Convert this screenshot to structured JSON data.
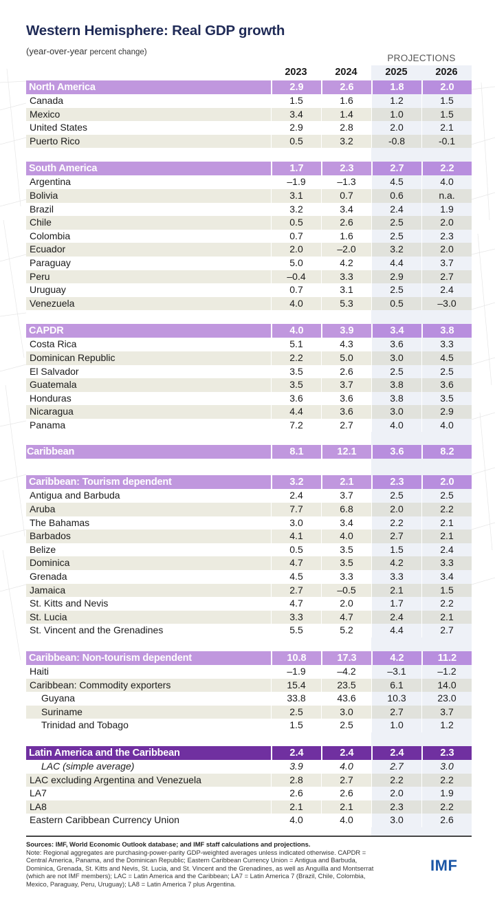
{
  "header": {
    "title": "Western Hemisphere: Real GDP growth",
    "subtitle_main": "(year-over-year",
    "subtitle_small": "percent change)",
    "projections_label": "PROJECTIONS",
    "years": [
      "2023",
      "2024",
      "2025",
      "2026"
    ]
  },
  "colors": {
    "title": "#1f2a56",
    "group_header": "#c097de",
    "lac_header": "#7030a0",
    "projection_shade": "#eef1f7",
    "alt_row": "#ecebe0",
    "logo": "#1a56a6"
  },
  "groups": [
    {
      "name": "North America",
      "values": [
        "2.9",
        "2.6",
        "1.8",
        "2.0"
      ],
      "rows": [
        {
          "label": "Canada",
          "values": [
            "1.5",
            "1.6",
            "1.2",
            "1.5"
          ]
        },
        {
          "label": "Mexico",
          "values": [
            "3.4",
            "1.4",
            "1.0",
            "1.5"
          ]
        },
        {
          "label": "United States",
          "values": [
            "2.9",
            "2.8",
            "2.0",
            "2.1"
          ]
        },
        {
          "label": "Puerto Rico",
          "values": [
            "0.5",
            "3.2",
            "-0.8",
            "-0.1"
          ]
        }
      ]
    },
    {
      "name": "South America",
      "values": [
        "1.7",
        "2.3",
        "2.7",
        "2.2"
      ],
      "rows": [
        {
          "label": "Argentina",
          "values": [
            "–1.9",
            "–1.3",
            "4.5",
            "4.0"
          ]
        },
        {
          "label": "Bolivia",
          "values": [
            "3.1",
            "0.7",
            "0.6",
            "n.a."
          ]
        },
        {
          "label": "Brazil",
          "values": [
            "3.2",
            "3.4",
            "2.4",
            "1.9"
          ]
        },
        {
          "label": "Chile",
          "values": [
            "0.5",
            "2.6",
            "2.5",
            "2.0"
          ]
        },
        {
          "label": "Colombia",
          "values": [
            "0.7",
            "1.6",
            "2.5",
            "2.3"
          ]
        },
        {
          "label": "Ecuador",
          "values": [
            "2.0",
            "–2.0",
            "3.2",
            "2.0"
          ]
        },
        {
          "label": "Paraguay",
          "values": [
            "5.0",
            "4.2",
            "4.4",
            "3.7"
          ]
        },
        {
          "label": "Peru",
          "values": [
            "–0.4",
            "3.3",
            "2.9",
            "2.7"
          ]
        },
        {
          "label": "Uruguay",
          "values": [
            "0.7",
            "3.1",
            "2.5",
            "2.4"
          ]
        },
        {
          "label": "Venezuela",
          "values": [
            "4.0",
            "5.3",
            "0.5",
            "–3.0"
          ]
        }
      ]
    },
    {
      "name": "CAPDR",
      "values": [
        "4.0",
        "3.9",
        "3.4",
        "3.8"
      ],
      "rows": [
        {
          "label": "Costa Rica",
          "values": [
            "5.1",
            "4.3",
            "3.6",
            "3.3"
          ]
        },
        {
          "label": "Dominican Republic",
          "values": [
            "2.2",
            "5.0",
            "3.0",
            "4.5"
          ]
        },
        {
          "label": "El Salvador",
          "values": [
            "3.5",
            "2.6",
            "2.5",
            "2.5"
          ]
        },
        {
          "label": "Guatemala",
          "values": [
            "3.5",
            "3.7",
            "3.8",
            "3.6"
          ]
        },
        {
          "label": "Honduras",
          "values": [
            "3.6",
            "3.6",
            "3.8",
            "3.5"
          ]
        },
        {
          "label": "Nicaragua",
          "values": [
            "4.4",
            "3.6",
            "3.0",
            "2.9"
          ]
        },
        {
          "label": "Panama",
          "values": [
            "7.2",
            "2.7",
            "4.0",
            "4.0"
          ]
        }
      ]
    },
    {
      "name": "Caribbean",
      "values": [
        "8.1",
        "12.1",
        "3.6",
        "8.2"
      ],
      "rows": []
    },
    {
      "name": "Caribbean: Tourism dependent",
      "values": [
        "3.2",
        "2.1",
        "2.3",
        "2.0"
      ],
      "rows": [
        {
          "label": "Antigua and Barbuda",
          "values": [
            "2.4",
            "3.7",
            "2.5",
            "2.5"
          ]
        },
        {
          "label": "Aruba",
          "values": [
            "7.7",
            "6.8",
            "2.0",
            "2.2"
          ]
        },
        {
          "label": "The Bahamas",
          "values": [
            "3.0",
            "3.4",
            "2.2",
            "2.1"
          ]
        },
        {
          "label": "Barbados",
          "values": [
            "4.1",
            "4.0",
            "2.7",
            "2.1"
          ]
        },
        {
          "label": "Belize",
          "values": [
            "0.5",
            "3.5",
            "1.5",
            "2.4"
          ]
        },
        {
          "label": "Dominica",
          "values": [
            "4.7",
            "3.5",
            "4.2",
            "3.3"
          ]
        },
        {
          "label": "Grenada",
          "values": [
            "4.5",
            "3.3",
            "3.3",
            "3.4"
          ]
        },
        {
          "label": "Jamaica",
          "values": [
            "2.7",
            "–0.5",
            "2.1",
            "1.5"
          ]
        },
        {
          "label": "St. Kitts and Nevis",
          "values": [
            "4.7",
            "2.0",
            "1.7",
            "2.2"
          ]
        },
        {
          "label": "St. Lucia",
          "values": [
            "3.3",
            "4.7",
            "2.4",
            "2.1"
          ]
        },
        {
          "label": "St. Vincent and the Grenadines",
          "values": [
            "5.5",
            "5.2",
            "4.4",
            "2.7"
          ]
        }
      ]
    },
    {
      "name": "Caribbean: Non-tourism dependent",
      "values": [
        "10.8",
        "17.3",
        "4.2",
        "11.2"
      ],
      "rows": [
        {
          "label": "Haiti",
          "values": [
            "–1.9",
            "–4.2",
            "–3.1",
            "–1.2"
          ]
        },
        {
          "label": "Caribbean: Commodity exporters",
          "values": [
            "15.4",
            "23.5",
            "6.1",
            "14.0"
          ]
        },
        {
          "label": "Guyana",
          "values": [
            "33.8",
            "43.6",
            "10.3",
            "23.0"
          ]
        },
        {
          "label": "Suriname",
          "values": [
            "2.5",
            "3.0",
            "2.7",
            "3.7"
          ]
        },
        {
          "label": "Trinidad and Tobago",
          "values": [
            "1.5",
            "2.5",
            "1.0",
            "1.2"
          ]
        }
      ]
    },
    {
      "name": "Latin America and the Caribbean",
      "values": [
        "2.4",
        "2.4",
        "2.4",
        "2.3"
      ],
      "rows": [
        {
          "label": "LAC (simple average)",
          "values": [
            "3.9",
            "4.0",
            "2.7",
            "3.0"
          ]
        },
        {
          "label": "LAC excluding Argentina and Venezuela",
          "values": [
            "2.8",
            "2.7",
            "2.2",
            "2.2"
          ]
        },
        {
          "label": "LA7",
          "values": [
            "2.6",
            "2.6",
            "2.0",
            "1.9"
          ]
        },
        {
          "label": "LA8",
          "values": [
            "2.1",
            "2.1",
            "2.3",
            "2.2"
          ]
        },
        {
          "label": "Eastern Caribbean Currency Union",
          "values": [
            "4.0",
            "4.0",
            "3.0",
            "2.6"
          ]
        }
      ]
    }
  ],
  "footer": {
    "sources": "Sources: IMF, World Economic Outlook database; and IMF staff calculations and projections.",
    "note": "Note: Regional aggregates are purchasing-power-parity GDP-weighted averages unless indicated otherwise. CAPDR = Central America, Panama, and the Dominican Republic; Eastern Caribbean Currency Union = Antigua and Barbuda, Dominica, Grenada, St. Kitts and Nevis, St. Lucia, and St. Vincent and the Grenadines, as well as Anguilla and Montserrat (which are not IMF members); LAC = Latin America and the Caribbean; LA7 = Latin America 7 (Brazil, Chile, Colombia, Mexico, Paraguay, Peru, Uruguay); LA8 = Latin America 7 plus Argentina.",
    "logo": "IMF"
  }
}
